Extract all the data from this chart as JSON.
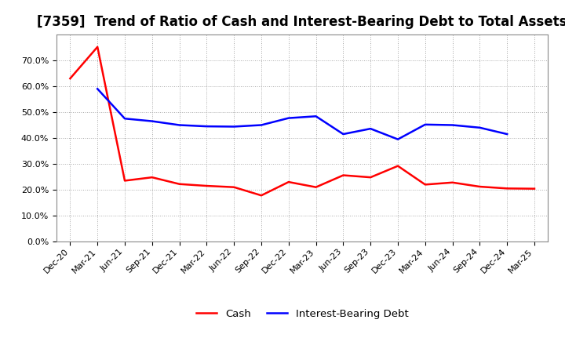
{
  "title": "[7359]  Trend of Ratio of Cash and Interest-Bearing Debt to Total Assets",
  "x_labels": [
    "Dec-20",
    "Mar-21",
    "Jun-21",
    "Sep-21",
    "Dec-21",
    "Mar-22",
    "Jun-22",
    "Sep-22",
    "Dec-22",
    "Mar-23",
    "Jun-23",
    "Sep-23",
    "Dec-23",
    "Mar-24",
    "Jun-24",
    "Sep-24",
    "Dec-24",
    "Mar-25"
  ],
  "cash": [
    0.63,
    0.752,
    0.235,
    0.248,
    0.222,
    0.215,
    0.21,
    0.178,
    0.23,
    0.21,
    0.256,
    0.248,
    0.292,
    0.22,
    0.228,
    0.212,
    0.205,
    0.204
  ],
  "interest_bearing_debt": [
    null,
    0.59,
    0.475,
    0.465,
    0.45,
    0.445,
    0.444,
    0.45,
    0.477,
    0.484,
    0.415,
    0.436,
    0.395,
    0.452,
    0.45,
    0.44,
    0.415,
    null
  ],
  "cash_color": "#ff0000",
  "debt_color": "#0000ff",
  "ylim": [
    0.0,
    0.8
  ],
  "yticks": [
    0.0,
    0.1,
    0.2,
    0.3,
    0.4,
    0.5,
    0.6,
    0.7
  ],
  "background_color": "#ffffff",
  "plot_bg_color": "#f5f5f5",
  "grid_color": "#aaaaaa",
  "title_fontsize": 12,
  "tick_fontsize": 8,
  "legend_cash": "Cash",
  "legend_debt": "Interest-Bearing Debt",
  "line_width": 1.8
}
